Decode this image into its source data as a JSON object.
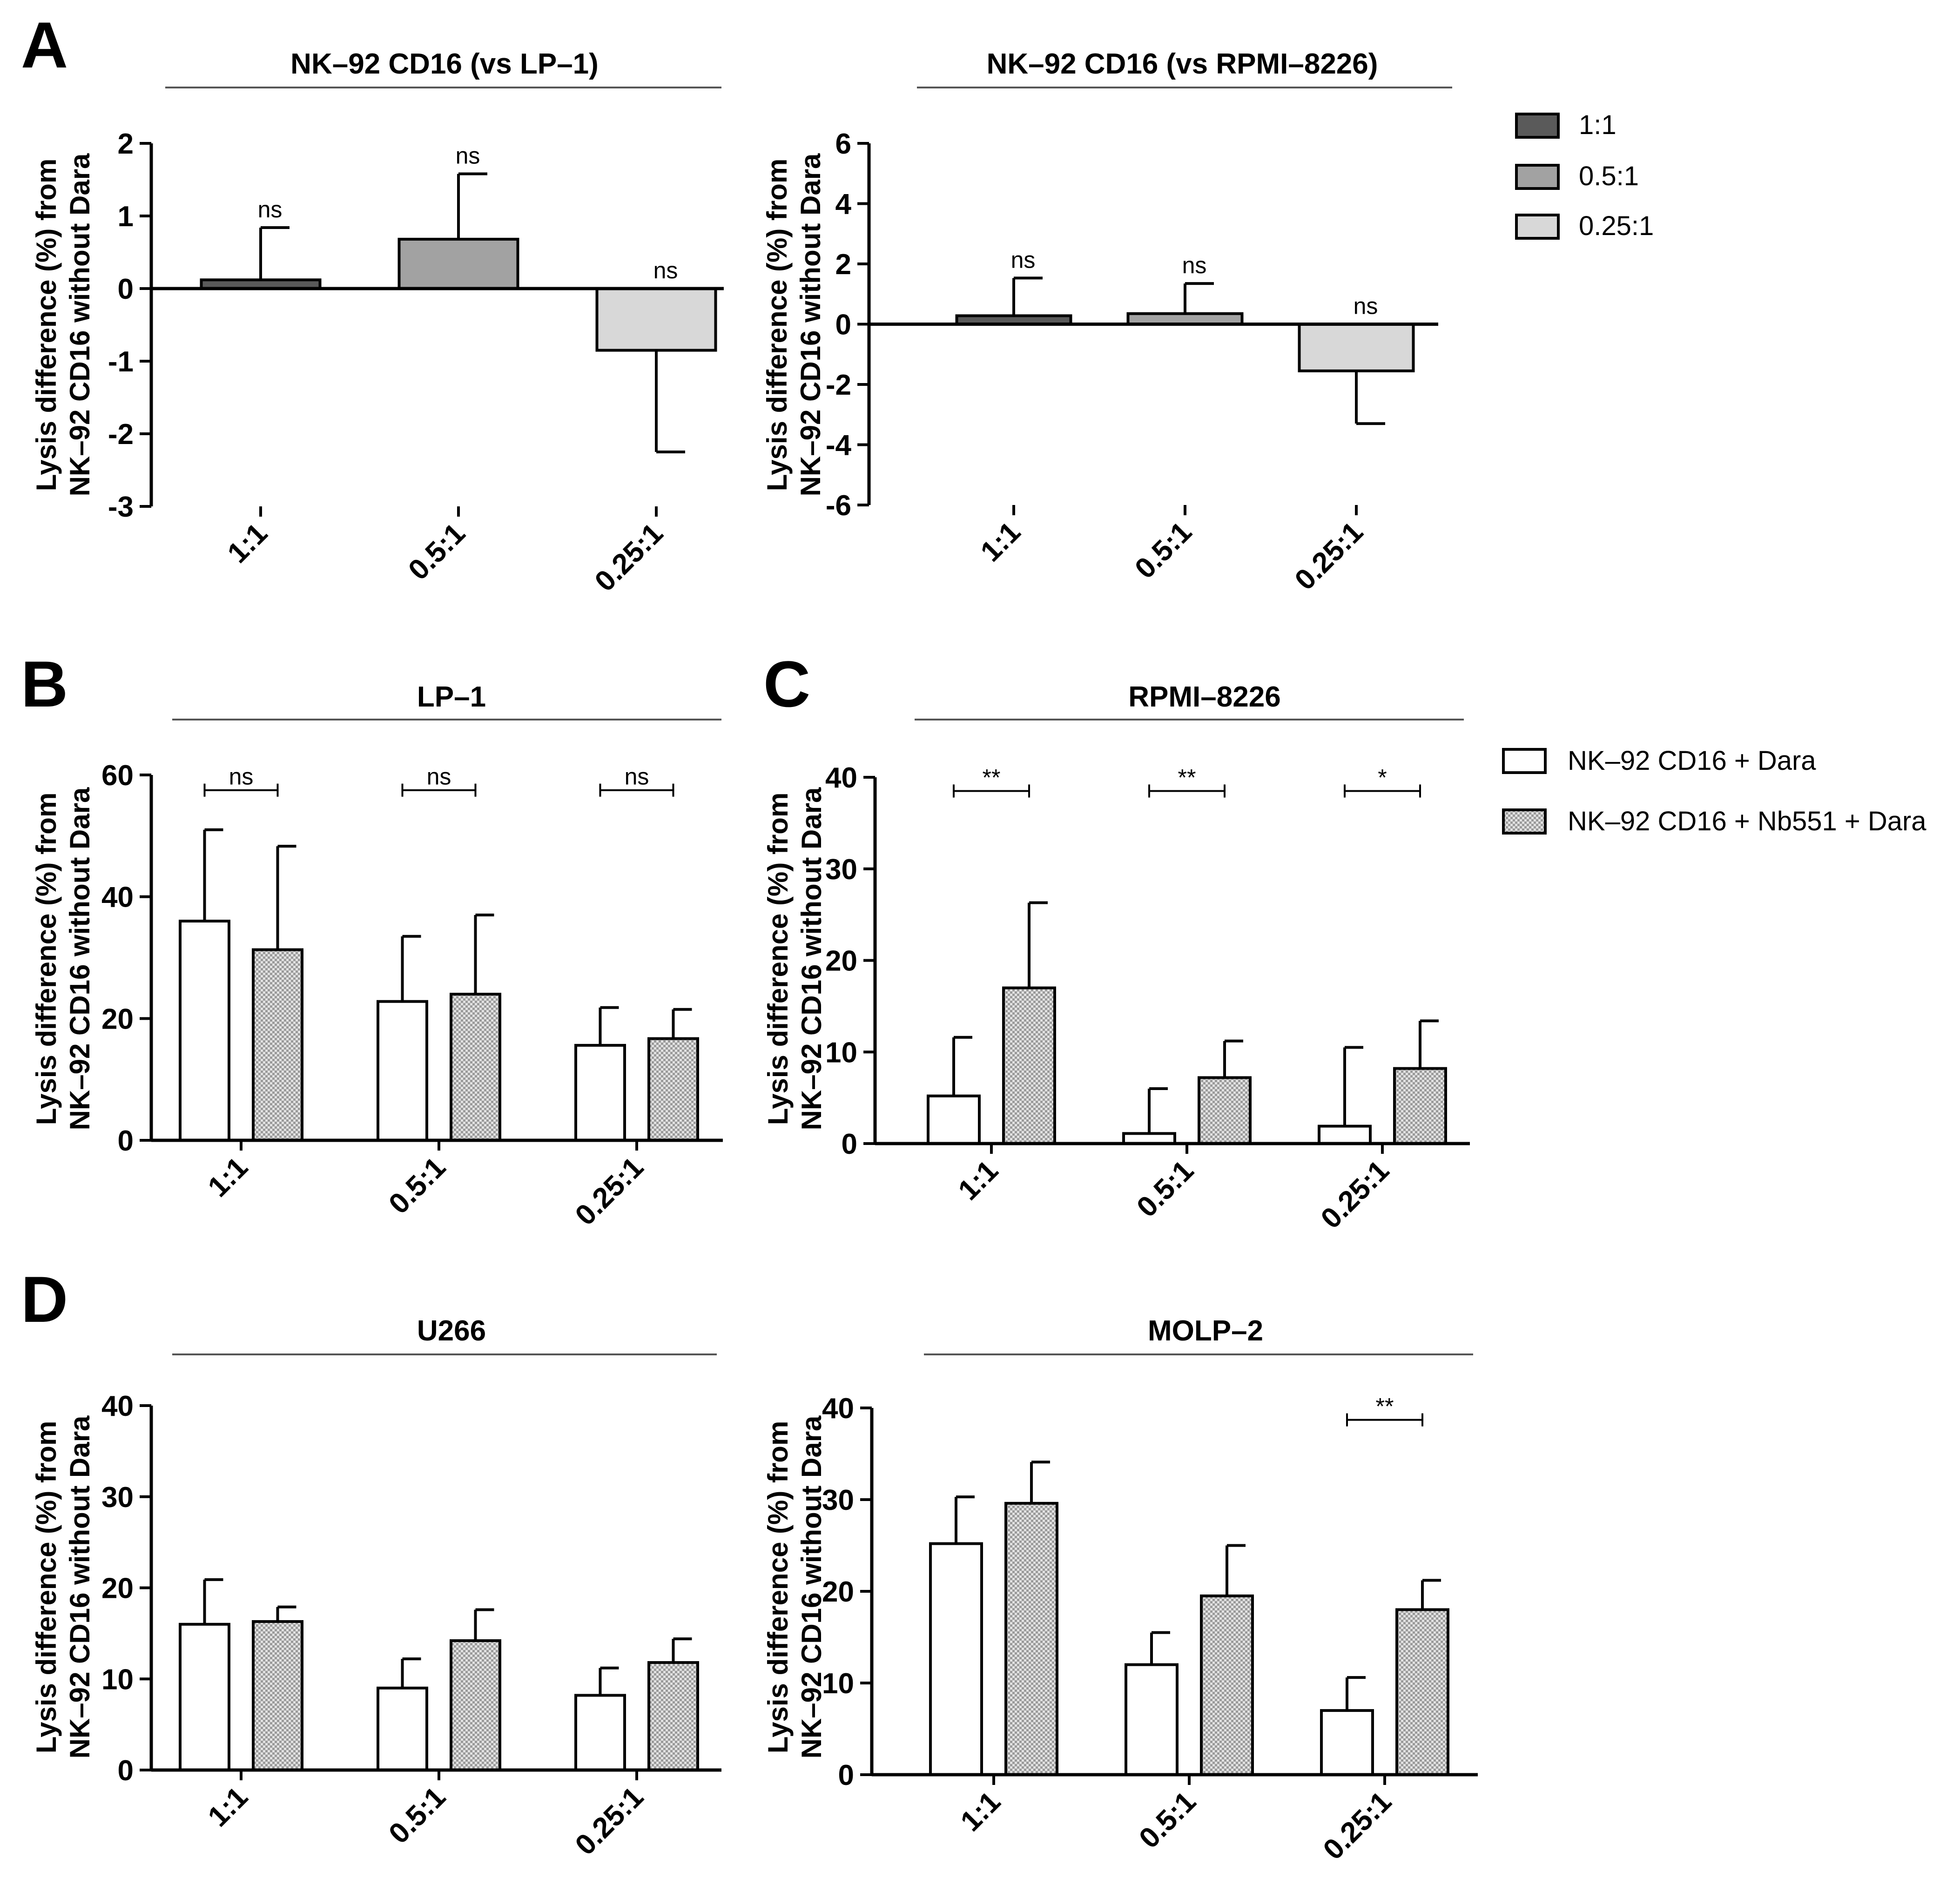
{
  "panels": {
    "A": "A",
    "B": "B",
    "C": "C",
    "D": "D"
  },
  "legends": {
    "ratio": {
      "items": [
        {
          "label": "1:1",
          "color": "#5a5a5a"
        },
        {
          "label": "0.5:1",
          "color": "#a2a2a2"
        },
        {
          "label": "0.25:1",
          "color": "#d8d8d8"
        }
      ]
    },
    "treatment": {
      "items": [
        {
          "label": "NK–92 CD16 + Dara",
          "fill": "#ffffff"
        },
        {
          "label": "NK–92 CD16 + Nb551 + Dara",
          "fill": "hatch"
        }
      ]
    }
  },
  "chart_data": [
    {
      "id": "a1",
      "type": "bar",
      "title": "NK–92 CD16 (vs LP–1)",
      "ylabel_line1": "Lysis difference (%) from",
      "ylabel_line2": "NK–92 CD16 without Dara",
      "ylim": [
        -3,
        2
      ],
      "yticks": [
        2,
        1,
        0,
        -1,
        -2,
        -3
      ],
      "categories": [
        "1:1",
        "0.5:1",
        "0.25:1"
      ],
      "series": [
        {
          "name": "ratio",
          "values": [
            0.12,
            0.68,
            -0.85
          ],
          "errors": [
            0.72,
            0.9,
            1.4
          ],
          "colors": [
            "#5a5a5a",
            "#a2a2a2",
            "#d8d8d8"
          ]
        }
      ],
      "significance": [
        {
          "cat": 0,
          "label": "ns"
        },
        {
          "cat": 1,
          "label": "ns"
        },
        {
          "cat": 2,
          "label": "ns"
        }
      ]
    },
    {
      "id": "a2",
      "type": "bar",
      "title": "NK–92 CD16 (vs RPMI–8226)",
      "ylabel_line1": "Lysis difference (%) from",
      "ylabel_line2": "NK–92 CD16 without Dara",
      "ylim": [
        -6,
        6
      ],
      "yticks": [
        6,
        4,
        2,
        0,
        -2,
        -4,
        -6
      ],
      "categories": [
        "1:1",
        "0.5:1",
        "0.25:1"
      ],
      "series": [
        {
          "name": "ratio",
          "values": [
            0.28,
            0.35,
            -1.55
          ],
          "errors": [
            1.25,
            1.0,
            1.75
          ],
          "colors": [
            "#5a5a5a",
            "#a2a2a2",
            "#d8d8d8"
          ]
        }
      ],
      "significance": [
        {
          "cat": 0,
          "label": "ns"
        },
        {
          "cat": 1,
          "label": "ns"
        },
        {
          "cat": 2,
          "label": "ns"
        }
      ]
    },
    {
      "id": "b",
      "type": "bar",
      "title": "LP–1",
      "ylabel_line1": "Lysis difference (%) from",
      "ylabel_line2": "NK–92 CD16 without Dara",
      "ylim": [
        0,
        60
      ],
      "yticks": [
        60,
        40,
        20,
        0
      ],
      "categories": [
        "1:1",
        "0.5:1",
        "0.25:1"
      ],
      "series": [
        {
          "name": "NK–92 CD16 + Dara",
          "values": [
            36,
            22.8,
            15.6
          ],
          "errors": [
            15,
            10.7,
            6.2
          ]
        },
        {
          "name": "NK–92 CD16 + Nb551 + Dara",
          "values": [
            31.3,
            24,
            16.7
          ],
          "errors": [
            17,
            13,
            4.8
          ]
        }
      ],
      "brackets": [
        {
          "cat": 0,
          "label": "ns"
        },
        {
          "cat": 1,
          "label": "ns"
        },
        {
          "cat": 2,
          "label": "ns"
        }
      ],
      "bracket_value": 57.5
    },
    {
      "id": "c",
      "type": "bar",
      "title": "RPMI–8226",
      "ylabel_line1": "Lysis difference (%) from",
      "ylabel_line2": "NK–92 CD16 without Dara",
      "ylim": [
        0,
        40
      ],
      "yticks": [
        40,
        30,
        20,
        10,
        0
      ],
      "categories": [
        "1:1",
        "0.5:1",
        "0.25:1"
      ],
      "series": [
        {
          "name": "NK–92 CD16 + Dara",
          "values": [
            5.2,
            1.1,
            1.9
          ],
          "errors": [
            6.4,
            4.9,
            8.6
          ]
        },
        {
          "name": "NK–92 CD16 + Nb551 + Dara",
          "values": [
            17,
            7.2,
            8.2
          ],
          "errors": [
            9.3,
            4,
            5.2
          ]
        }
      ],
      "brackets": [
        {
          "cat": 0,
          "label": "**"
        },
        {
          "cat": 1,
          "label": "**"
        },
        {
          "cat": 2,
          "label": "*"
        }
      ],
      "bracket_value": 38.5
    },
    {
      "id": "d1",
      "type": "bar",
      "title": "U266",
      "ylabel_line1": "Lysis difference (%) from",
      "ylabel_line2": "NK–92 CD16 without Dara",
      "ylim": [
        0,
        40
      ],
      "yticks": [
        40,
        30,
        20,
        10,
        0
      ],
      "categories": [
        "1:1",
        "0.5:1",
        "0.25:1"
      ],
      "series": [
        {
          "name": "NK–92 CD16 + Dara",
          "values": [
            16,
            9,
            8.2
          ],
          "errors": [
            4.9,
            3.2,
            3
          ]
        },
        {
          "name": "NK–92 CD16 + Nb551 + Dara",
          "values": [
            16.3,
            14.2,
            11.8
          ],
          "errors": [
            1.6,
            3.4,
            2.6
          ]
        }
      ],
      "brackets": []
    },
    {
      "id": "d2",
      "type": "bar",
      "title": "MOLP–2",
      "ylabel_line1": "Lysis difference (%) from",
      "ylabel_line2": "NK–92 CD16 without Dara",
      "ylim": [
        0,
        40
      ],
      "yticks": [
        40,
        30,
        20,
        10,
        0
      ],
      "categories": [
        "1:1",
        "0.5:1",
        "0.25:1"
      ],
      "series": [
        {
          "name": "NK–92 CD16 + Dara",
          "values": [
            25.2,
            12,
            7
          ],
          "errors": [
            5.1,
            3.5,
            3.6
          ]
        },
        {
          "name": "NK–92 CD16 + Nb551 + Dara",
          "values": [
            29.6,
            19.5,
            18
          ],
          "errors": [
            4.5,
            5.5,
            3.2
          ]
        }
      ],
      "brackets": [
        {
          "cat": 2,
          "label": "**"
        }
      ],
      "bracket_value": 38.7
    }
  ]
}
